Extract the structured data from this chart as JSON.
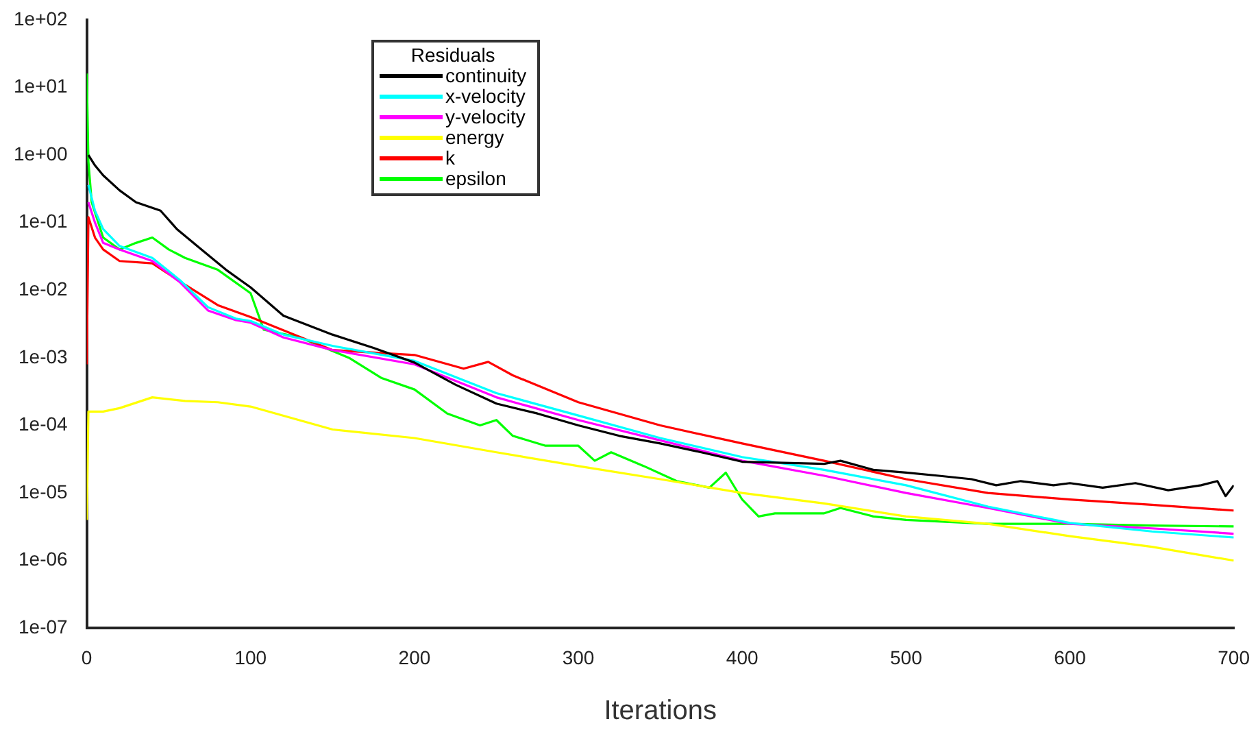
{
  "chart_data": {
    "type": "line",
    "xlabel": "Iterations",
    "legend_title": "Residuals",
    "legend": "top",
    "grid": false,
    "log": "y",
    "marker": "none",
    "line_style": "solid",
    "xlim": [
      0,
      700
    ],
    "xticks": [
      0,
      100,
      200,
      300,
      400,
      500,
      600,
      700
    ],
    "ylim": [
      1e-07,
      100
    ],
    "yticks": [
      {
        "value": 1e-07,
        "label": "1e-07"
      },
      {
        "value": 1e-06,
        "label": "1e-06"
      },
      {
        "value": 1e-05,
        "label": "1e-05"
      },
      {
        "value": 0.0001,
        "label": "1e-04"
      },
      {
        "value": 0.001,
        "label": "1e-03"
      },
      {
        "value": 0.01,
        "label": "1e-02"
      },
      {
        "value": 0.1,
        "label": "1e-01"
      },
      {
        "value": 1,
        "label": "1e+00"
      },
      {
        "value": 10,
        "label": "1e+01"
      },
      {
        "value": 100,
        "label": "1e+02"
      }
    ],
    "series": [
      {
        "name": "continuity",
        "color": "#000000",
        "x": [
          1,
          5,
          10,
          20,
          30,
          45,
          55,
          70,
          85,
          100,
          120,
          150,
          175,
          200,
          225,
          250,
          275,
          300,
          325,
          350,
          375,
          400,
          425,
          450,
          460,
          480,
          500,
          520,
          540,
          555,
          570,
          590,
          600,
          620,
          640,
          660,
          680,
          690,
          695,
          700
        ],
        "values": [
          1.0,
          0.7,
          0.5,
          0.3,
          0.2,
          0.15,
          0.08,
          0.04,
          0.02,
          0.011,
          0.0042,
          0.0022,
          0.0014,
          0.00085,
          0.0004,
          0.00021,
          0.00015,
          0.0001,
          7e-05,
          5.4e-05,
          4e-05,
          2.9e-05,
          2.8e-05,
          2.7e-05,
          3e-05,
          2.2e-05,
          2e-05,
          1.8e-05,
          1.6e-05,
          1.3e-05,
          1.5e-05,
          1.3e-05,
          1.4e-05,
          1.2e-05,
          1.4e-05,
          1.1e-05,
          1.3e-05,
          1.5e-05,
          9e-06,
          1.3e-05
        ]
      },
      {
        "name": "x-velocity",
        "color": "#00ffff",
        "x": [
          1,
          5,
          10,
          20,
          40,
          57,
          74,
          91,
          100,
          120,
          150,
          200,
          250,
          300,
          350,
          400,
          450,
          500,
          550,
          600,
          650,
          700
        ],
        "values": [
          0.36,
          0.15,
          0.08,
          0.045,
          0.03,
          0.014,
          0.0056,
          0.0038,
          0.0035,
          0.0022,
          0.0015,
          0.0009,
          0.0003,
          0.00014,
          6.5e-05,
          3.4e-05,
          2.2e-05,
          1.3e-05,
          6.3e-06,
          3.6e-06,
          2.7e-06,
          2.2e-06
        ]
      },
      {
        "name": "y-velocity",
        "color": "#ff00ff",
        "x": [
          1,
          5,
          10,
          20,
          40,
          57,
          74,
          91,
          100,
          120,
          150,
          200,
          250,
          300,
          350,
          400,
          450,
          500,
          550,
          600,
          650,
          700
        ],
        "values": [
          0.2,
          0.1,
          0.05,
          0.04,
          0.027,
          0.013,
          0.005,
          0.0036,
          0.0033,
          0.002,
          0.0013,
          0.0008,
          0.00026,
          0.00012,
          6e-05,
          3e-05,
          1.8e-05,
          1e-05,
          6e-06,
          3.5e-06,
          3e-06,
          2.5e-06
        ]
      },
      {
        "name": "energy",
        "color": "#ffff00",
        "x": [
          0,
          1,
          10,
          20,
          40,
          60,
          80,
          100,
          150,
          200,
          250,
          300,
          350,
          400,
          450,
          500,
          550,
          600,
          650,
          700
        ],
        "values": [
          4e-06,
          0.00016,
          0.00016,
          0.00018,
          0.00026,
          0.00023,
          0.00022,
          0.00019,
          8.7e-05,
          6.5e-05,
          4e-05,
          2.5e-05,
          1.6e-05,
          1e-05,
          7e-06,
          4.5e-06,
          3.5e-06,
          2.3e-06,
          1.6e-06,
          1e-06
        ]
      },
      {
        "name": "k",
        "color": "#ff0000",
        "x": [
          0,
          1,
          5,
          10,
          20,
          40,
          60,
          80,
          100,
          150,
          200,
          230,
          245,
          260,
          300,
          350,
          400,
          450,
          500,
          550,
          600,
          650,
          700
        ],
        "values": [
          0.0008,
          0.12,
          0.06,
          0.04,
          0.027,
          0.025,
          0.012,
          0.006,
          0.004,
          0.0013,
          0.0011,
          0.00069,
          0.00087,
          0.00055,
          0.00022,
          0.0001,
          5.4e-05,
          3e-05,
          1.6e-05,
          1e-05,
          8e-06,
          6.7e-06,
          5.5e-06
        ]
      },
      {
        "name": "epsilon",
        "color": "#00ff00",
        "x": [
          0,
          1,
          3,
          10,
          20,
          30,
          40,
          50,
          60,
          80,
          100,
          108,
          130,
          160,
          180,
          200,
          220,
          240,
          250,
          260,
          280,
          300,
          310,
          320,
          340,
          360,
          380,
          390,
          400,
          410,
          420,
          450,
          460,
          480,
          500,
          550,
          600,
          650,
          700
        ],
        "values": [
          16,
          0.8,
          0.2,
          0.06,
          0.04,
          0.05,
          0.06,
          0.04,
          0.03,
          0.02,
          0.009,
          0.0026,
          0.002,
          0.001,
          0.0005,
          0.00034,
          0.00015,
          0.0001,
          0.00012,
          7e-05,
          5e-05,
          5e-05,
          3e-05,
          4e-05,
          2.5e-05,
          1.5e-05,
          1.2e-05,
          2e-05,
          8e-06,
          4.5e-06,
          5e-06,
          5e-06,
          6e-06,
          4.5e-06,
          4e-06,
          3.5e-06,
          3.5e-06,
          3.3e-06,
          3.2e-06
        ]
      }
    ]
  }
}
